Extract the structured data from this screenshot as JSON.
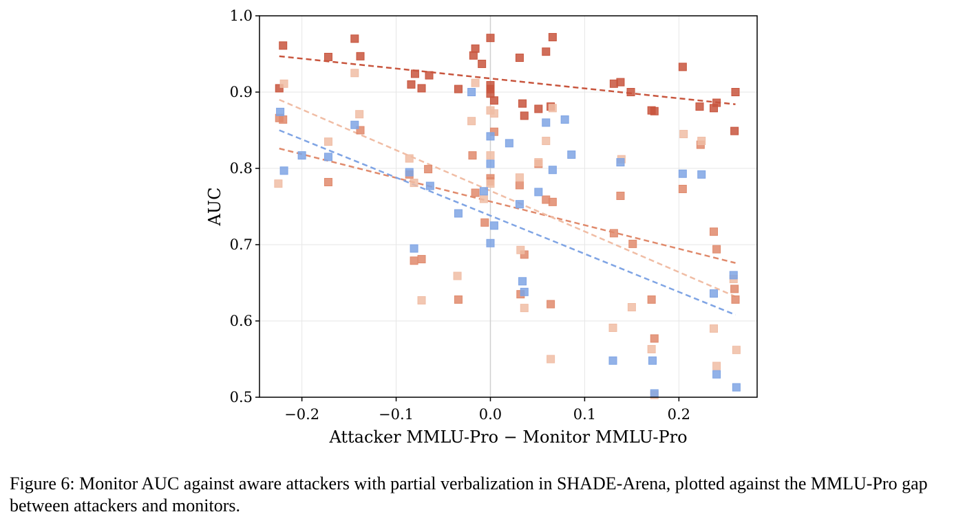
{
  "caption": "Figure 6: Monitor AUC against aware attackers with partial verbalization in SHADE-Arena, plotted against the MMLU-Pro gap between attackers and monitors.",
  "chart_data": {
    "type": "scatter",
    "title": "",
    "xlabel": "Attacker MMLU-Pro − Monitor MMLU-Pro",
    "ylabel": "AUC",
    "xlim": [
      -0.245,
      0.283
    ],
    "ylim": [
      0.5,
      1.0
    ],
    "xticks": [
      -0.2,
      -0.1,
      0.0,
      0.1,
      0.2
    ],
    "xtick_labels": [
      "−0.2",
      "−0.1",
      "0.0",
      "0.1",
      "0.2"
    ],
    "yticks": [
      0.5,
      0.6,
      0.7,
      0.8,
      0.9,
      1.0
    ],
    "ytick_labels": [
      "0.5",
      "0.6",
      "0.7",
      "0.8",
      "0.9",
      "1.0"
    ],
    "grid": true,
    "vertical_reference_line_at_x": 0.0,
    "series": [
      {
        "color": "#c8553d",
        "points": [
          [
            -0.224,
            0.905
          ],
          [
            -0.22,
            0.961
          ],
          [
            -0.172,
            0.946
          ],
          [
            -0.144,
            0.97
          ],
          [
            -0.138,
            0.947
          ],
          [
            -0.084,
            0.91
          ],
          [
            -0.08,
            0.924
          ],
          [
            -0.073,
            0.905
          ],
          [
            -0.065,
            0.922
          ],
          [
            -0.034,
            0.904
          ],
          [
            -0.018,
            0.948
          ],
          [
            -0.016,
            0.957
          ],
          [
            -0.009,
            0.937
          ],
          [
            0.0,
            0.971
          ],
          [
            0.0,
            0.909
          ],
          [
            0.0,
            0.904
          ],
          [
            0.0,
            0.898
          ],
          [
            0.004,
            0.889
          ],
          [
            0.031,
            0.945
          ],
          [
            0.034,
            0.885
          ],
          [
            0.036,
            0.869
          ],
          [
            0.051,
            0.878
          ],
          [
            0.059,
            0.953
          ],
          [
            0.064,
            0.881
          ],
          [
            0.066,
            0.972
          ],
          [
            0.131,
            0.911
          ],
          [
            0.138,
            0.913
          ],
          [
            0.149,
            0.9
          ],
          [
            0.171,
            0.876
          ],
          [
            0.174,
            0.875
          ],
          [
            0.204,
            0.933
          ],
          [
            0.222,
            0.881
          ],
          [
            0.237,
            0.879
          ],
          [
            0.24,
            0.886
          ],
          [
            0.259,
            0.849
          ],
          [
            0.26,
            0.9
          ]
        ],
        "trend": [
          [
            -0.224,
            0.947
          ],
          [
            0.26,
            0.884
          ]
        ]
      },
      {
        "color": "#e08a6c",
        "points": [
          [
            -0.224,
            0.866
          ],
          [
            -0.22,
            0.864
          ],
          [
            -0.172,
            0.782
          ],
          [
            -0.138,
            0.85
          ],
          [
            -0.086,
            0.792
          ],
          [
            -0.081,
            0.679
          ],
          [
            -0.073,
            0.681
          ],
          [
            -0.066,
            0.799
          ],
          [
            -0.034,
            0.628
          ],
          [
            -0.019,
            0.817
          ],
          [
            -0.016,
            0.768
          ],
          [
            -0.006,
            0.729
          ],
          [
            0.0,
            0.787
          ],
          [
            0.0,
            0.783
          ],
          [
            0.004,
            0.848
          ],
          [
            0.031,
            0.778
          ],
          [
            0.032,
            0.635
          ],
          [
            0.036,
            0.687
          ],
          [
            0.051,
            0.806
          ],
          [
            0.059,
            0.759
          ],
          [
            0.064,
            0.622
          ],
          [
            0.066,
            0.756
          ],
          [
            0.131,
            0.715
          ],
          [
            0.138,
            0.764
          ],
          [
            0.151,
            0.701
          ],
          [
            0.171,
            0.628
          ],
          [
            0.174,
            0.577
          ],
          [
            0.204,
            0.773
          ],
          [
            0.223,
            0.831
          ],
          [
            0.237,
            0.717
          ],
          [
            0.24,
            0.694
          ],
          [
            0.259,
            0.642
          ],
          [
            0.26,
            0.628
          ]
        ],
        "trend": [
          [
            -0.224,
            0.826
          ],
          [
            0.26,
            0.676
          ]
        ]
      },
      {
        "color": "#f0bda5",
        "points": [
          [
            -0.225,
            0.78
          ],
          [
            -0.219,
            0.911
          ],
          [
            -0.172,
            0.835
          ],
          [
            -0.144,
            0.925
          ],
          [
            -0.139,
            0.871
          ],
          [
            -0.086,
            0.813
          ],
          [
            -0.081,
            0.781
          ],
          [
            -0.073,
            0.627
          ],
          [
            -0.035,
            0.659
          ],
          [
            -0.02,
            0.862
          ],
          [
            -0.016,
            0.912
          ],
          [
            -0.007,
            0.76
          ],
          [
            0.0,
            0.817
          ],
          [
            0.0,
            0.78
          ],
          [
            0.0,
            0.876
          ],
          [
            0.004,
            0.872
          ],
          [
            0.031,
            0.788
          ],
          [
            0.032,
            0.693
          ],
          [
            0.036,
            0.617
          ],
          [
            0.051,
            0.808
          ],
          [
            0.059,
            0.836
          ],
          [
            0.064,
            0.55
          ],
          [
            0.066,
            0.879
          ],
          [
            0.13,
            0.591
          ],
          [
            0.139,
            0.812
          ],
          [
            0.15,
            0.618
          ],
          [
            0.171,
            0.563
          ],
          [
            0.174,
            0.503
          ],
          [
            0.205,
            0.845
          ],
          [
            0.224,
            0.836
          ],
          [
            0.237,
            0.59
          ],
          [
            0.24,
            0.541
          ],
          [
            0.258,
            0.655
          ],
          [
            0.261,
            0.562
          ]
        ],
        "trend": [
          [
            -0.224,
            0.89
          ],
          [
            0.26,
            0.632
          ]
        ]
      },
      {
        "color": "#7fa4e4",
        "points": [
          [
            -0.223,
            0.874
          ],
          [
            -0.219,
            0.797
          ],
          [
            -0.2,
            0.817
          ],
          [
            -0.172,
            0.815
          ],
          [
            -0.144,
            0.857
          ],
          [
            -0.086,
            0.795
          ],
          [
            -0.081,
            0.695
          ],
          [
            -0.064,
            0.777
          ],
          [
            -0.034,
            0.741
          ],
          [
            -0.02,
            0.9
          ],
          [
            -0.007,
            0.77
          ],
          [
            0.0,
            0.842
          ],
          [
            0.0,
            0.806
          ],
          [
            0.0,
            0.702
          ],
          [
            0.004,
            0.725
          ],
          [
            0.02,
            0.833
          ],
          [
            0.031,
            0.753
          ],
          [
            0.034,
            0.652
          ],
          [
            0.036,
            0.638
          ],
          [
            0.051,
            0.769
          ],
          [
            0.059,
            0.86
          ],
          [
            0.066,
            0.798
          ],
          [
            0.079,
            0.864
          ],
          [
            0.086,
            0.818
          ],
          [
            0.13,
            0.548
          ],
          [
            0.138,
            0.808
          ],
          [
            0.172,
            0.548
          ],
          [
            0.174,
            0.505
          ],
          [
            0.204,
            0.793
          ],
          [
            0.224,
            0.792
          ],
          [
            0.237,
            0.636
          ],
          [
            0.24,
            0.53
          ],
          [
            0.258,
            0.66
          ],
          [
            0.261,
            0.513
          ]
        ],
        "trend": [
          [
            -0.224,
            0.85
          ],
          [
            0.26,
            0.608
          ]
        ]
      }
    ]
  }
}
